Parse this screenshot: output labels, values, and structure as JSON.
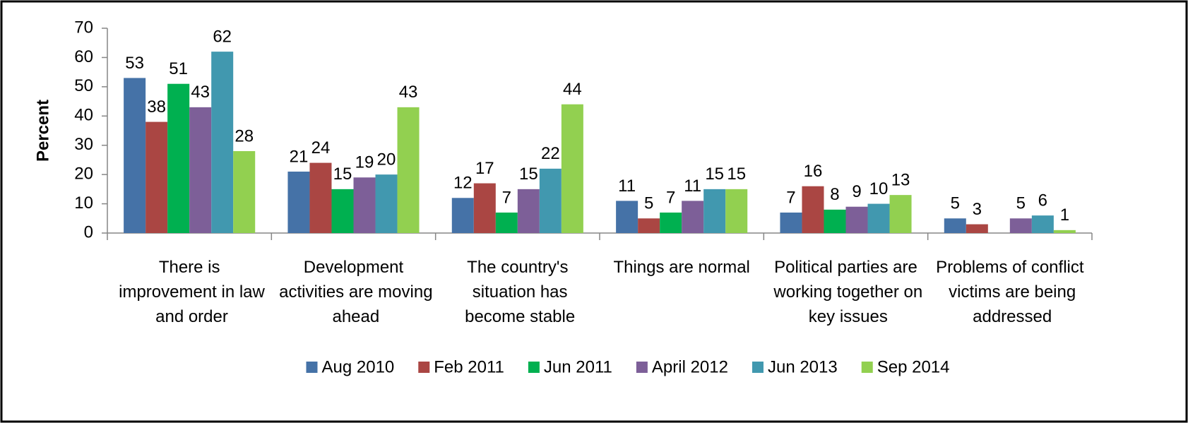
{
  "chart_data": {
    "type": "bar",
    "y_label": "Percent",
    "categories": [
      "There is improvement in law and order",
      "Development activities are moving ahead",
      "The country's situation has become stable",
      "Things are normal",
      "Political parties are working together on key issues",
      "Problems of conflict victims are being addressed"
    ],
    "series": [
      {
        "name": "Aug 2010",
        "color": "#4572A7",
        "values": [
          53,
          21,
          12,
          11,
          7,
          5
        ]
      },
      {
        "name": "Feb 2011",
        "color": "#AA4643",
        "values": [
          38,
          24,
          17,
          5,
          16,
          3
        ]
      },
      {
        "name": "Jun 2011",
        "color": "#00B050",
        "values": [
          51,
          15,
          7,
          7,
          8,
          null
        ]
      },
      {
        "name": "April 2012",
        "color": "#7D5F98",
        "values": [
          43,
          19,
          15,
          11,
          9,
          5
        ]
      },
      {
        "name": "Jun 2013",
        "color": "#4198AF",
        "values": [
          62,
          20,
          22,
          15,
          10,
          6
        ]
      },
      {
        "name": "Sep 2014",
        "color": "#92D050",
        "values": [
          28,
          43,
          44,
          15,
          13,
          1
        ]
      }
    ],
    "ylim": [
      0,
      70
    ],
    "yticks": [
      0,
      10,
      20,
      30,
      40,
      50,
      60,
      70
    ],
    "grid": false,
    "legend": "bottom"
  }
}
